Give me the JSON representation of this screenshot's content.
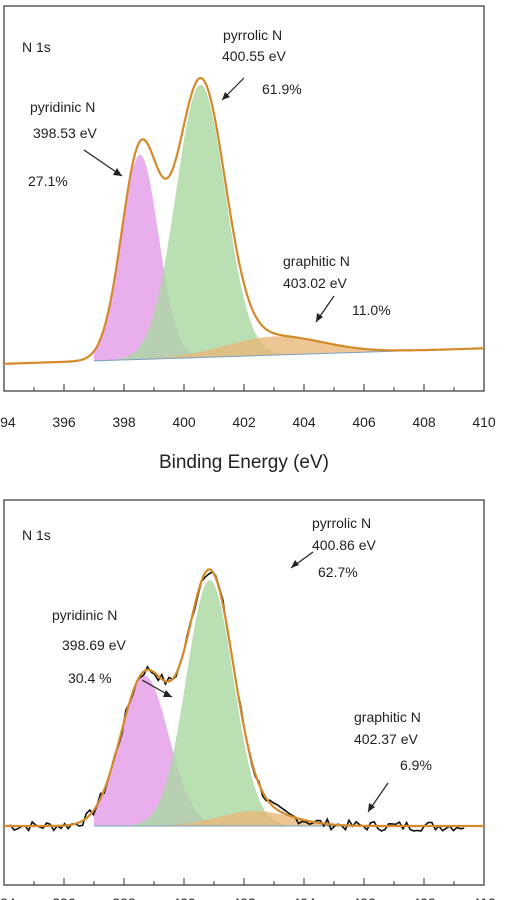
{
  "chart_data": [
    {
      "type": "line",
      "panel_label": "N 1s",
      "xlabel": "Binding Energy (eV)",
      "xlim": [
        394,
        410
      ],
      "x_ticks": [
        394,
        396,
        398,
        400,
        402,
        404,
        406,
        408,
        410
      ],
      "x_tick_labels": [
        "394",
        "396",
        "398",
        "400",
        "402",
        "404",
        "406",
        "408",
        "410"
      ],
      "ylim": [
        0,
        1
      ],
      "background": {
        "left": 0.02,
        "right": 0.07
      },
      "series": [
        {
          "label": [
            "pyridinic N",
            "398.53 eV",
            "27.1%"
          ],
          "center": 398.53,
          "height": 0.66,
          "sigma": 0.62,
          "color": "#e39be8"
        },
        {
          "label": [
            "pyrrolic N",
            "400.55 eV",
            "61.9%"
          ],
          "center": 400.55,
          "height": 0.88,
          "sigma": 0.82,
          "color": "#a8d7a0"
        },
        {
          "label": [
            "graphitic N",
            "403.02 eV",
            "11.0%"
          ],
          "center": 403.02,
          "height": 0.06,
          "sigma": 1.6,
          "color": "#e8b878"
        }
      ],
      "envelope_color": "#d4892a"
    },
    {
      "type": "line",
      "panel_label": "N 1s",
      "xlim": [
        394,
        410
      ],
      "x_ticks": [
        394,
        396,
        398,
        400,
        402,
        404,
        406,
        408,
        410
      ],
      "ylim": [
        0,
        1
      ],
      "background": {
        "left": 0.04,
        "right": 0.04
      },
      "series": [
        {
          "label": [
            "pyridinic N",
            "398.69 eV",
            "30.4 %"
          ],
          "center": 398.69,
          "height": 0.5,
          "sigma": 0.8,
          "color": "#e39be8"
        },
        {
          "label": [
            "pyrrolic N",
            "400.86 eV",
            "62.7%"
          ],
          "center": 400.86,
          "height": 0.82,
          "sigma": 0.78,
          "color": "#a8d7a0"
        },
        {
          "label": [
            "graphitic N",
            "402.37 eV",
            "6.9%"
          ],
          "center": 402.37,
          "height": 0.05,
          "sigma": 1.2,
          "color": "#e8b878"
        }
      ],
      "envelope_color": "#d4892a"
    }
  ]
}
